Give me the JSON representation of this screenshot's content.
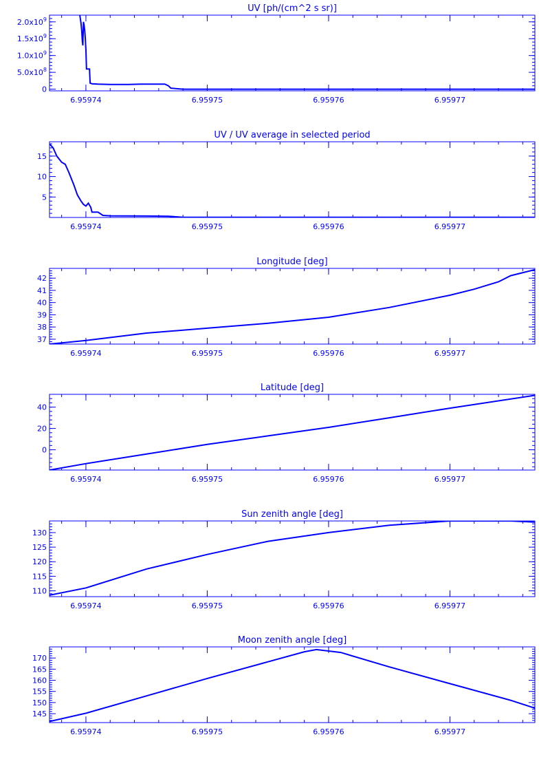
{
  "colors": {
    "axis": "#0000ff",
    "line": "#0000ff",
    "background": "#ffffff"
  },
  "chart_data": [
    {
      "type": "line",
      "title": "UV [ph/(cm^2 s sr)]",
      "xlim": [
        6.959737,
        6.959777
      ],
      "ylim": [
        -50000000,
        2200000000
      ],
      "xticks": [
        6.95974,
        6.95975,
        6.95976,
        6.95977
      ],
      "xtick_labels": [
        "6.95974",
        "6.95975",
        "6.95976",
        "6.95977"
      ],
      "yticks": [
        0,
        500000000,
        1000000000,
        1500000000,
        2000000000
      ],
      "ytick_labels": [
        {
          "mant": "0",
          "exp": ""
        },
        {
          "mant": "5.0x10",
          "exp": "8"
        },
        {
          "mant": "1.0x10",
          "exp": "9"
        },
        {
          "mant": "1.5x10",
          "exp": "9"
        },
        {
          "mant": "2.0x10",
          "exp": "9"
        }
      ],
      "x": [
        6.9597395,
        6.9597396,
        6.95973965,
        6.9597397,
        6.95973975,
        6.9597398,
        6.95973985,
        6.9597399,
        6.95973995,
        6.95974,
        6.95974005,
        6.9597401,
        6.9597403,
        6.95974035,
        6.9597405,
        6.959741,
        6.959742,
        6.9597435,
        6.9597445,
        6.9597465,
        6.9597468,
        6.959747,
        6.959748,
        6.959777
      ],
      "y": [
        2200000000,
        1950000000,
        1750000000,
        1450000000,
        1300000000,
        2000000000,
        1900000000,
        1750000000,
        1500000000,
        1150000000,
        600000000,
        600000000,
        600000000,
        180000000,
        160000000,
        150000000,
        140000000,
        140000000,
        150000000,
        150000000,
        100000000,
        30000000,
        0,
        0
      ]
    },
    {
      "type": "line",
      "title": "UV / UV average in selected period",
      "xlim": [
        6.959737,
        6.959777
      ],
      "ylim": [
        0,
        18.5
      ],
      "xticks": [
        6.95974,
        6.95975,
        6.95976,
        6.95977
      ],
      "xtick_labels": [
        "6.95974",
        "6.95975",
        "6.95976",
        "6.95977"
      ],
      "yticks": [
        5,
        10,
        15
      ],
      "ytick_labels": [
        "5",
        "10",
        "15"
      ],
      "x": [
        6.959737,
        6.9597373,
        6.9597376,
        6.959738,
        6.9597383,
        6.9597386,
        6.959739,
        6.9597393,
        6.9597396,
        6.9597398,
        6.95974,
        6.9597402,
        6.9597404,
        6.9597405,
        6.959741,
        6.9597414,
        6.959742,
        6.959745,
        6.9597468,
        6.959748,
        6.959777
      ],
      "y": [
        18,
        17,
        15,
        13.5,
        13,
        11,
        8,
        5.5,
        4,
        3.2,
        2.8,
        3.5,
        2.5,
        1.3,
        1.3,
        0.5,
        0.4,
        0.35,
        0.3,
        0.05,
        0.05
      ]
    },
    {
      "type": "line",
      "title": "Longitude [deg]",
      "xlim": [
        6.959737,
        6.959777
      ],
      "ylim": [
        36.6,
        42.8
      ],
      "xticks": [
        6.95974,
        6.95975,
        6.95976,
        6.95977
      ],
      "xtick_labels": [
        "6.95974",
        "6.95975",
        "6.95976",
        "6.95977"
      ],
      "yticks": [
        37,
        38,
        39,
        40,
        41,
        42
      ],
      "ytick_labels": [
        "37",
        "38",
        "39",
        "40",
        "41",
        "42"
      ],
      "x": [
        6.959737,
        6.95974,
        6.959745,
        6.95975,
        6.959755,
        6.95976,
        6.959765,
        6.95977,
        6.959772,
        6.959774,
        6.959775,
        6.959777
      ],
      "y": [
        36.6,
        36.9,
        37.5,
        37.9,
        38.3,
        38.8,
        39.6,
        40.6,
        41.1,
        41.7,
        42.2,
        42.7
      ]
    },
    {
      "type": "line",
      "title": "Latitude [deg]",
      "xlim": [
        6.959737,
        6.959777
      ],
      "ylim": [
        -19,
        52
      ],
      "xticks": [
        6.95974,
        6.95975,
        6.95976,
        6.95977
      ],
      "xtick_labels": [
        "6.95974",
        "6.95975",
        "6.95976",
        "6.95977"
      ],
      "yticks": [
        0,
        20,
        40
      ],
      "ytick_labels": [
        "0",
        "20",
        "40"
      ],
      "x": [
        6.959737,
        6.95974,
        6.959745,
        6.95975,
        6.959755,
        6.95976,
        6.959765,
        6.95977,
        6.959777
      ],
      "y": [
        -19,
        -13,
        -4,
        5,
        13,
        21,
        30,
        39,
        51
      ]
    },
    {
      "type": "line",
      "title": "Sun zenith angle [deg]",
      "xlim": [
        6.959737,
        6.959777
      ],
      "ylim": [
        108,
        134
      ],
      "xticks": [
        6.95974,
        6.95975,
        6.95976,
        6.95977
      ],
      "xtick_labels": [
        "6.95974",
        "6.95975",
        "6.95976",
        "6.95977"
      ],
      "yticks": [
        110,
        115,
        120,
        125,
        130
      ],
      "ytick_labels": [
        "110",
        "115",
        "120",
        "125",
        "130"
      ],
      "x": [
        6.959737,
        6.95974,
        6.959745,
        6.95975,
        6.959755,
        6.95976,
        6.959765,
        6.95977,
        6.959773,
        6.959775,
        6.959777
      ],
      "y": [
        108.5,
        111,
        117.5,
        122.5,
        127,
        130,
        132.5,
        134,
        134,
        134,
        133.6
      ]
    },
    {
      "type": "line",
      "title": "Moon zenith angle [deg]",
      "xlim": [
        6.959737,
        6.959777
      ],
      "ylim": [
        141,
        175
      ],
      "xticks": [
        6.95974,
        6.95975,
        6.95976,
        6.95977
      ],
      "xtick_labels": [
        "6.95974",
        "6.95975",
        "6.95976",
        "6.95977"
      ],
      "yticks": [
        145,
        150,
        155,
        160,
        165,
        170
      ],
      "ytick_labels": [
        "145",
        "150",
        "155",
        "160",
        "165",
        "170"
      ],
      "x": [
        6.959737,
        6.95974,
        6.959745,
        6.95975,
        6.959755,
        6.959758,
        6.959759,
        6.959761,
        6.959765,
        6.95977,
        6.959775,
        6.959777
      ],
      "y": [
        141.5,
        145.2,
        153,
        160.8,
        168.3,
        172.8,
        173.8,
        172.5,
        166,
        158.5,
        151,
        147.5
      ]
    }
  ]
}
